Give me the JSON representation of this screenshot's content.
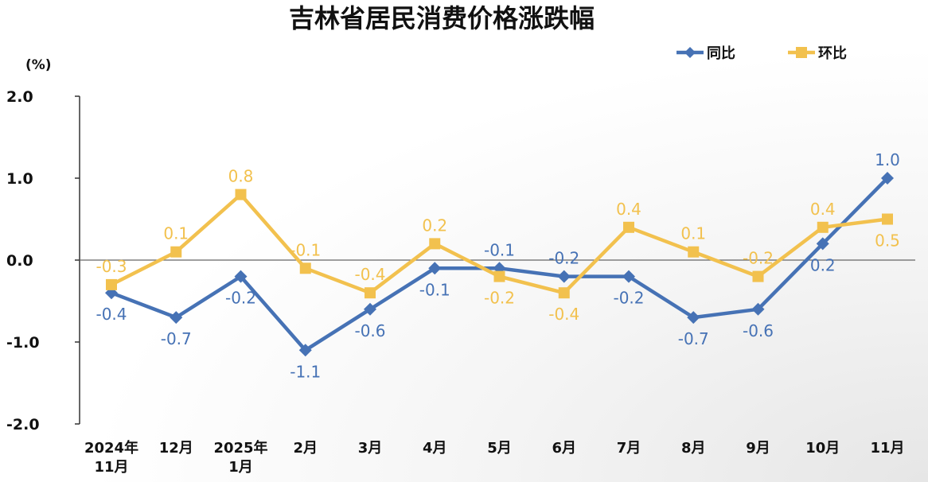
{
  "chart_data": {
    "type": "line",
    "title": "吉林省居民消费价格涨跌幅",
    "ylabel": "(%)",
    "ylim": [
      -2.0,
      2.0
    ],
    "yticks": [
      "2.0",
      "1.0",
      "0.0",
      "-1.0",
      "-2.0"
    ],
    "ytick_values": [
      2.0,
      1.0,
      0.0,
      -1.0,
      -2.0
    ],
    "categories": [
      [
        "2024年",
        "11月"
      ],
      [
        "12月"
      ],
      [
        "2025年",
        "1月"
      ],
      [
        "2月"
      ],
      [
        "3月"
      ],
      [
        "4月"
      ],
      [
        "5月"
      ],
      [
        "6月"
      ],
      [
        "7月"
      ],
      [
        "8月"
      ],
      [
        "9月"
      ],
      [
        "10月"
      ],
      [
        "11月"
      ]
    ],
    "legend_position": "top-right",
    "grid": false,
    "series": [
      {
        "name": "同比",
        "color": "#4672B5",
        "marker": "diamond",
        "values": [
          -0.4,
          -0.7,
          -0.2,
          -1.1,
          -0.6,
          -0.1,
          -0.1,
          -0.2,
          -0.2,
          -0.7,
          -0.6,
          0.2,
          1.0
        ],
        "labels": [
          "-0.4",
          "-0.7",
          "-0.2",
          "-1.1",
          "-0.6",
          "-0.1",
          "-0.1",
          "-0.2",
          "-0.2",
          "-0.7",
          "-0.6",
          "0.2",
          "1.0"
        ]
      },
      {
        "name": "环比",
        "color": "#F2C14E",
        "marker": "square",
        "values": [
          -0.3,
          0.1,
          0.8,
          -0.1,
          -0.4,
          0.2,
          -0.2,
          -0.4,
          0.4,
          0.1,
          -0.2,
          0.4,
          0.5
        ],
        "labels": [
          "-0.3",
          "0.1",
          "0.8",
          "-0.1",
          "-0.4",
          "0.2",
          "-0.2",
          "-0.4",
          "0.4",
          "0.1",
          "-0.2",
          "0.4",
          "0.5"
        ]
      }
    ]
  }
}
